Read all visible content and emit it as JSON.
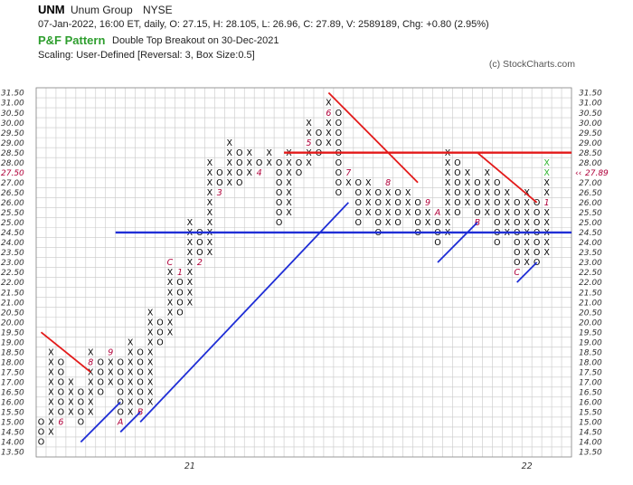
{
  "header": {
    "symbol": "UNM",
    "company": "Unum Group",
    "exchange": "NYSE",
    "ohlc_line": "07-Jan-2022, 16:00 ET, daily, O: 27.15, H: 28.105, L: 26.96, C: 27.89, V: 2589189, Chg: +0.80 (2.95%)",
    "pattern_label": "P&F Pattern",
    "pattern_text": "Double Top Breakout on 30-Dec-2021",
    "scaling": "Scaling: User-Defined [Reversal: 3, Box Size:0.5]",
    "credit": "(c) StockCharts.com"
  },
  "colors": {
    "grid": "#c8c8c8",
    "x_mark": "#000000",
    "o_mark": "#000000",
    "month_mark": "#b0003a",
    "recent_x": "#2fb52f",
    "resistance": "#e31a1a",
    "support": "#1f2ed6",
    "price_marker": "#b0003a"
  },
  "chart_data": {
    "type": "point-and-figure",
    "box_size": 0.5,
    "reversal": 3,
    "scaling": "User-Defined",
    "ylim": [
      13.5,
      31.5
    ],
    "y_ticks": [
      "13.50",
      "14.00",
      "14.50",
      "15.00",
      "15.50",
      "16.00",
      "16.50",
      "17.00",
      "17.50",
      "18.00",
      "18.50",
      "19.00",
      "19.50",
      "20.00",
      "20.50",
      "21.00",
      "21.50",
      "22.00",
      "22.50",
      "23.00",
      "23.50",
      "24.00",
      "24.50",
      "25.00",
      "25.50",
      "26.00",
      "26.50",
      "27.00",
      "27.50",
      "28.00",
      "28.50",
      "29.00",
      "29.50",
      "30.00",
      "30.50",
      "31.00",
      "31.50"
    ],
    "x_labels": [
      {
        "col": 15,
        "text": "21"
      },
      {
        "col": 49,
        "text": "22"
      }
    ],
    "last_price": "27.89",
    "last_price_label": "27.50",
    "grid": true,
    "columns": [
      {
        "type": "O",
        "from": 15.0,
        "to": 14.0,
        "marks": {}
      },
      {
        "type": "X",
        "from": 14.5,
        "to": 18.5,
        "marks": {}
      },
      {
        "type": "O",
        "from": 18.0,
        "to": 15.0,
        "marks": {
          "15.0": "6"
        }
      },
      {
        "type": "X",
        "from": 15.5,
        "to": 17.0,
        "marks": {}
      },
      {
        "type": "O",
        "from": 16.5,
        "to": 15.0,
        "marks": {}
      },
      {
        "type": "X",
        "from": 15.5,
        "to": 18.5,
        "marks": {
          "15.0": "7",
          "18.0": "8"
        }
      },
      {
        "type": "O",
        "from": 18.0,
        "to": 16.5,
        "marks": {}
      },
      {
        "type": "X",
        "from": 17.0,
        "to": 18.5,
        "marks": {
          "18.5": "9"
        }
      },
      {
        "type": "O",
        "from": 18.0,
        "to": 15.0,
        "marks": {
          "15.0": "A"
        }
      },
      {
        "type": "X",
        "from": 15.5,
        "to": 19.0,
        "marks": {}
      },
      {
        "type": "O",
        "from": 18.5,
        "to": 15.5,
        "marks": {
          "15.5": "B"
        }
      },
      {
        "type": "X",
        "from": 16.0,
        "to": 20.5,
        "marks": {}
      },
      {
        "type": "O",
        "from": 20.0,
        "to": 19.0,
        "marks": {}
      },
      {
        "type": "X",
        "from": 19.5,
        "to": 23.0,
        "marks": {
          "23.0": "C"
        }
      },
      {
        "type": "O",
        "from": 22.5,
        "to": 20.5,
        "marks": {
          "22.5": "1"
        }
      },
      {
        "type": "X",
        "from": 21.0,
        "to": 25.0,
        "marks": {}
      },
      {
        "type": "O",
        "from": 24.5,
        "to": 23.0,
        "marks": {
          "23.0": "2"
        }
      },
      {
        "type": "X",
        "from": 23.5,
        "to": 28.0,
        "marks": {}
      },
      {
        "type": "O",
        "from": 27.5,
        "to": 26.5,
        "marks": {
          "26.5": "3"
        }
      },
      {
        "type": "X",
        "from": 27.0,
        "to": 29.0,
        "marks": {}
      },
      {
        "type": "O",
        "from": 28.5,
        "to": 27.0,
        "marks": {}
      },
      {
        "type": "X",
        "from": 27.5,
        "to": 28.5,
        "marks": {}
      },
      {
        "type": "O",
        "from": 28.0,
        "to": 27.5,
        "marks": {
          "27.5": "4"
        }
      },
      {
        "type": "X",
        "from": 28.0,
        "to": 28.5,
        "marks": {}
      },
      {
        "type": "O",
        "from": 28.0,
        "to": 25.0,
        "marks": {}
      },
      {
        "type": "X",
        "from": 25.5,
        "to": 28.5,
        "marks": {}
      },
      {
        "type": "O",
        "from": 28.0,
        "to": 27.5,
        "marks": {}
      },
      {
        "type": "X",
        "from": 28.0,
        "to": 30.0,
        "marks": {
          "29.0": "5"
        }
      },
      {
        "type": "O",
        "from": 29.5,
        "to": 28.5,
        "marks": {}
      },
      {
        "type": "X",
        "from": 29.0,
        "to": 31.0,
        "marks": {
          "30.5": "6"
        }
      },
      {
        "type": "O",
        "from": 30.5,
        "to": 26.5,
        "marks": {}
      },
      {
        "type": "X",
        "from": 27.0,
        "to": 27.5,
        "marks": {
          "27.5": "7"
        }
      },
      {
        "type": "O",
        "from": 27.0,
        "to": 25.0,
        "marks": {}
      },
      {
        "type": "X",
        "from": 25.5,
        "to": 27.0,
        "marks": {}
      },
      {
        "type": "O",
        "from": 26.5,
        "to": 24.5,
        "marks": {}
      },
      {
        "type": "X",
        "from": 25.0,
        "to": 27.0,
        "marks": {
          "27.0": "8"
        }
      },
      {
        "type": "O",
        "from": 26.5,
        "to": 25.0,
        "marks": {}
      },
      {
        "type": "X",
        "from": 25.5,
        "to": 26.5,
        "marks": {}
      },
      {
        "type": "O",
        "from": 26.0,
        "to": 24.5,
        "marks": {}
      },
      {
        "type": "X",
        "from": 25.0,
        "to": 26.0,
        "marks": {
          "26.0": "9"
        }
      },
      {
        "type": "O",
        "from": 25.5,
        "to": 24.0,
        "marks": {
          "25.5": "A"
        }
      },
      {
        "type": "X",
        "from": 24.5,
        "to": 28.5,
        "marks": {}
      },
      {
        "type": "O",
        "from": 28.0,
        "to": 25.5,
        "marks": {}
      },
      {
        "type": "X",
        "from": 26.0,
        "to": 27.5,
        "marks": {}
      },
      {
        "type": "O",
        "from": 27.0,
        "to": 25.0,
        "marks": {
          "25.0": "B"
        }
      },
      {
        "type": "X",
        "from": 25.5,
        "to": 27.5,
        "marks": {}
      },
      {
        "type": "O",
        "from": 27.0,
        "to": 24.0,
        "marks": {}
      },
      {
        "type": "X",
        "from": 24.5,
        "to": 26.5,
        "marks": {}
      },
      {
        "type": "O",
        "from": 26.0,
        "to": 22.5,
        "marks": {
          "22.5": "C"
        }
      },
      {
        "type": "X",
        "from": 23.0,
        "to": 26.5,
        "marks": {}
      },
      {
        "type": "O",
        "from": 26.0,
        "to": 23.0,
        "marks": {}
      },
      {
        "type": "X",
        "from": 23.5,
        "to": 28.0,
        "marks": {
          "26.0": "1"
        },
        "recent_from": 27.5
      }
    ],
    "trendlines": [
      {
        "kind": "resistance",
        "from": [
          0,
          19.5
        ],
        "to": [
          5,
          17.5
        ]
      },
      {
        "kind": "support",
        "from": [
          4,
          14.0
        ],
        "to": [
          8,
          16.0
        ]
      },
      {
        "kind": "support",
        "from": [
          8,
          14.5
        ],
        "to": [
          10,
          15.5
        ]
      },
      {
        "kind": "support",
        "from": [
          10,
          15.0
        ],
        "to": [
          31,
          26.0
        ]
      },
      {
        "kind": "resistance",
        "from": [
          29,
          31.5
        ],
        "to": [
          38,
          27.0
        ]
      },
      {
        "kind": "resistance",
        "from": [
          44,
          28.5
        ],
        "to": [
          50,
          26.0
        ]
      },
      {
        "kind": "support",
        "from": [
          40,
          23.0
        ],
        "to": [
          44,
          25.0
        ]
      },
      {
        "kind": "support",
        "from": [
          48,
          22.0
        ],
        "to": [
          50,
          23.0
        ]
      },
      {
        "kind": "horizontal_resistance",
        "from": [
          25,
          28.5
        ],
        "to": [
          54,
          28.5
        ]
      },
      {
        "kind": "horizontal_support",
        "from": [
          8,
          24.5
        ],
        "to": [
          54,
          24.5
        ]
      }
    ]
  }
}
